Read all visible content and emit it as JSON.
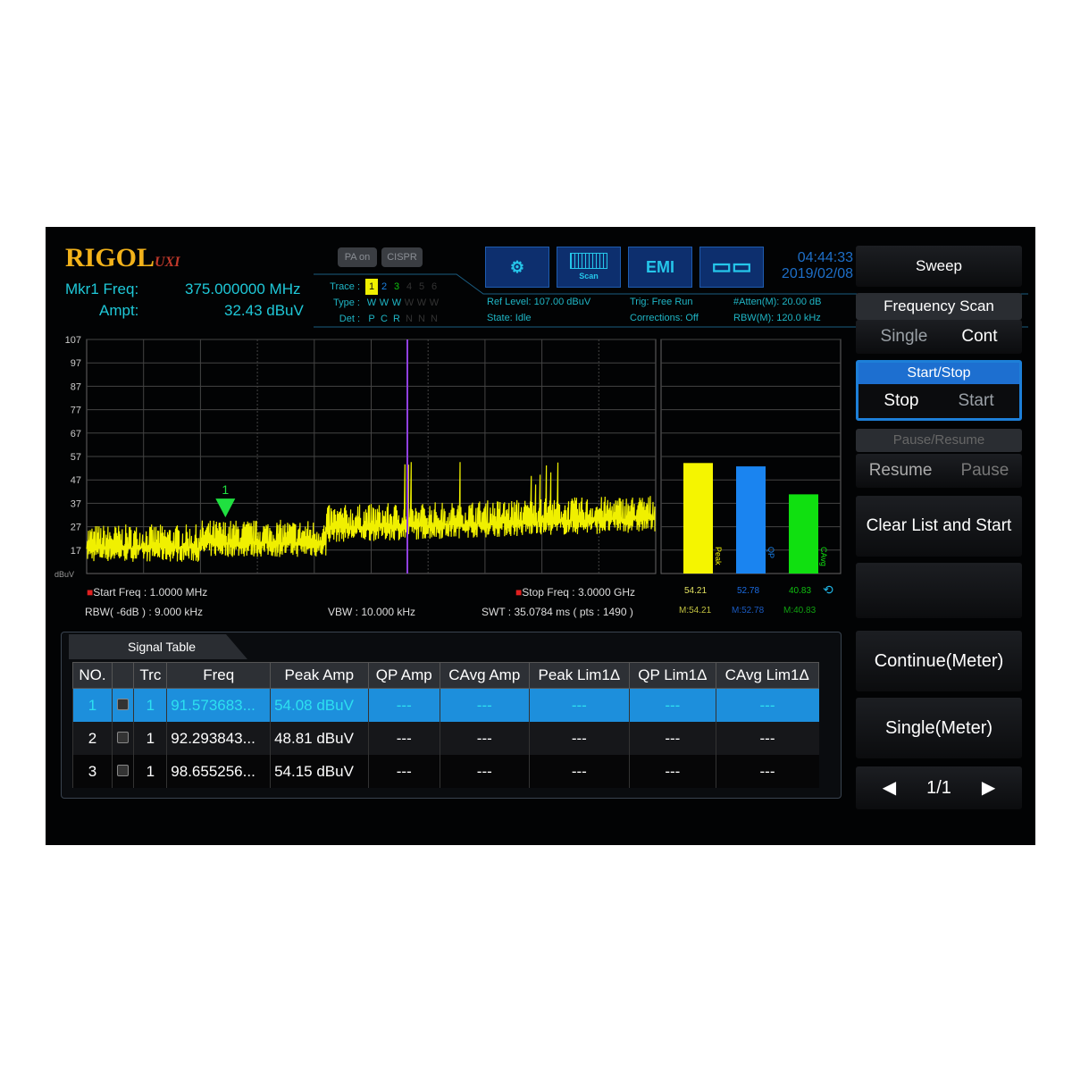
{
  "header": {
    "logo": "RIGOL",
    "logo_sub": "UXI",
    "mkr_label": "Mkr1 Freq:",
    "mkr_freq": "375.000000 MHz",
    "ampt_label": "Ampt:",
    "ampt": "32.43 dBuV",
    "pa": "PA on",
    "cispr": "CISPR",
    "trace_label": "Trace :",
    "type_label": "Type :",
    "det_label": "Det :",
    "traces": [
      "1",
      "2",
      "3",
      "4",
      "5",
      "6"
    ],
    "types": [
      "W",
      "W",
      "W",
      "W",
      "W",
      "W"
    ],
    "dets": [
      "P",
      "C",
      "R",
      "N",
      "N",
      "N"
    ],
    "icons": [
      "settings-gear-icon",
      "scan-icon",
      "emi-icon",
      "layout-grid-icon"
    ],
    "scan_label": "Scan",
    "emi": "EMI",
    "time": "04:44:33",
    "date": "2019/02/08",
    "ref_level": "Ref Level: 107.00 dBuV",
    "state": "State: Idle",
    "trig": "Trig: Free Run",
    "corrections": "Corrections: Off",
    "atten": "#Atten(M): 20.00 dB",
    "rbw_m": "RBW(M): 120.0 kHz"
  },
  "chart_data": {
    "type": "line",
    "ylabel": "dBuV",
    "ylim": [
      7,
      107
    ],
    "yticks": [
      107,
      97,
      87,
      77,
      67,
      57,
      47,
      37,
      27,
      17
    ],
    "x_start_mhz": 1,
    "x_stop_mhz": 3000,
    "marker": {
      "label": "1",
      "freq_mhz": 375,
      "amp": 32.43
    },
    "meters": [
      {
        "name": "Peak",
        "value": 54.21,
        "max": "M:54.21",
        "color": "#f5f500"
      },
      {
        "name": "QP",
        "value": 52.78,
        "max": "M:52.78",
        "color": "#1a84f0"
      },
      {
        "name": "CAvg",
        "value": 40.83,
        "max": "M:40.83",
        "color": "#10e010"
      }
    ],
    "trace_color": "#f0f000"
  },
  "meters_text": {
    "peak": "54.21",
    "qp": "52.78",
    "cavg": "40.83",
    "peak_max": "M:54.21",
    "qp_max": "M:52.78",
    "cavg_max": "M:40.83",
    "peak_lbl": "Peak",
    "qp_lbl": "QP",
    "cavg_lbl": "CAvg"
  },
  "footer": {
    "start": "Start Freq : 1.0000 MHz",
    "stop": "Stop Freq : 3.0000 GHz",
    "rbw": "RBW( -6dB ) : 9.000 kHz",
    "vbw": "VBW : 10.000 kHz",
    "swt": "SWT : 35.0784 ms ( pts : 1490 )"
  },
  "signal_table": {
    "tab": "Signal Table",
    "columns": [
      "NO.",
      "",
      "Trc",
      "Freq",
      "Peak Amp",
      "QP Amp",
      "CAvg Amp",
      "Peak Lim1Δ",
      "QP Lim1Δ",
      "CAvg Lim1Δ"
    ],
    "rows": [
      [
        "1",
        "",
        "1",
        "91.573683...",
        "54.08 dBuV",
        "---",
        "---",
        "---",
        "---",
        "---"
      ],
      [
        "2",
        "",
        "1",
        "92.293843...",
        "48.81 dBuV",
        "---",
        "---",
        "---",
        "---",
        "---"
      ],
      [
        "3",
        "",
        "1",
        "98.655256...",
        "54.15 dBuV",
        "---",
        "---",
        "---",
        "---",
        "---"
      ]
    ]
  },
  "menu": {
    "sweep": "Sweep",
    "freq_scan": "Frequency Scan",
    "single": "Single",
    "cont": "Cont",
    "start_stop": "Start/Stop",
    "stop": "Stop",
    "start": "Start",
    "pause_resume": "Pause/Resume",
    "resume": "Resume",
    "pause": "Pause",
    "clear": "Clear List and Start",
    "continue_meter": "Continue(Meter)",
    "single_meter": "Single(Meter)",
    "page": "1/1"
  }
}
